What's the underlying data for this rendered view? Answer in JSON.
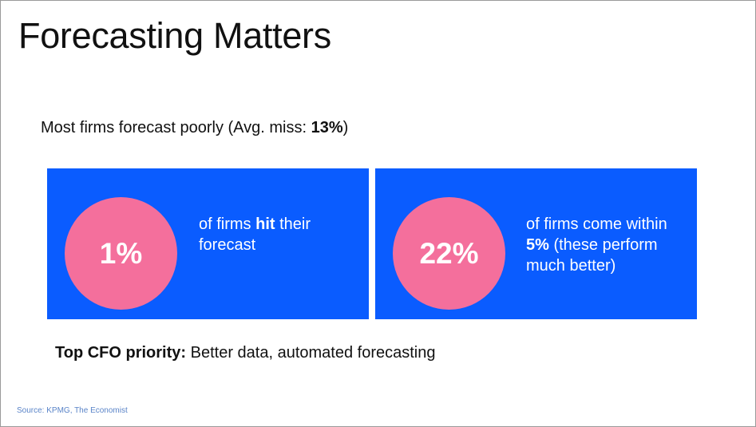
{
  "slide": {
    "title": "Forecasting Matters",
    "subtitle": {
      "prefix": "Most firms forecast poorly (Avg. miss: ",
      "highlight": "13%",
      "suffix": ")"
    },
    "cards": [
      {
        "stat": "1%",
        "text_parts": [
          "of firms ",
          "hit",
          " their forecast"
        ]
      },
      {
        "stat": "22%",
        "text_parts": [
          "of  firms come within ",
          "5%",
          " (these perform much better)"
        ]
      }
    ],
    "priority": {
      "label": "Top CFO priority:",
      "text": " Better data, automated forecasting"
    },
    "source": "Source: KPMG, The Economist"
  },
  "colors": {
    "card_blue": "#0a5cff",
    "circle_pink": "#f46f9c",
    "source_blue": "#5a84c8"
  }
}
